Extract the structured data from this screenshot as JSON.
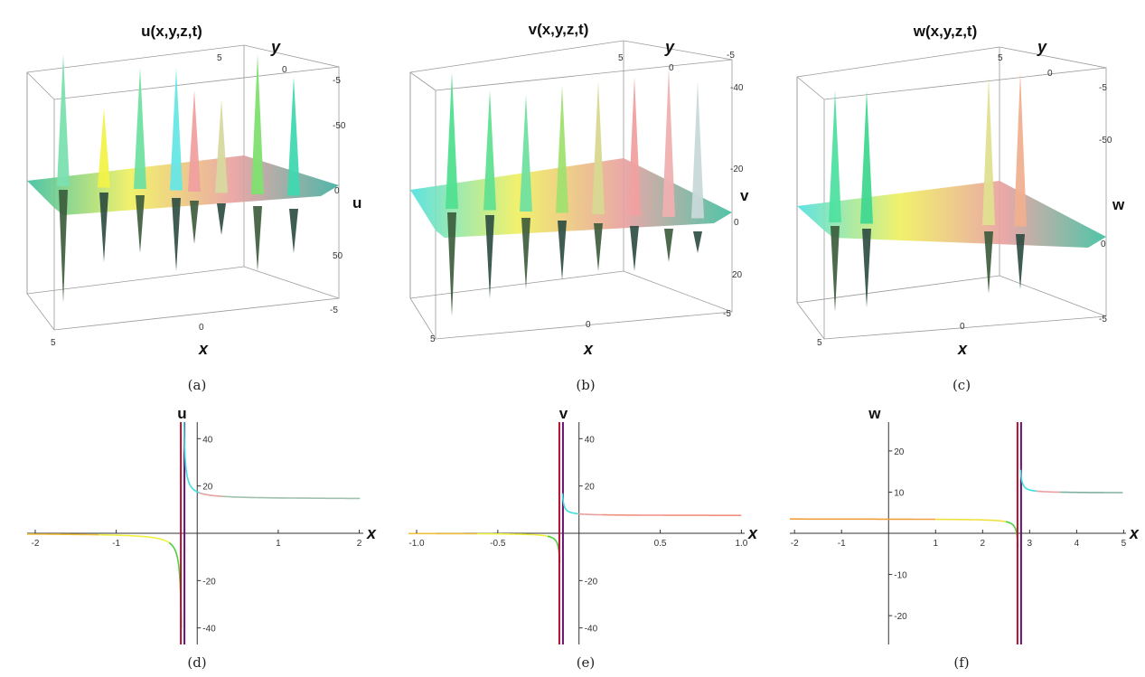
{
  "panels_3d": [
    {
      "id": "a",
      "title": "u(x,y,z,t)",
      "caption": "(a)",
      "x_label": "x",
      "y_label": "y",
      "z_label": "u",
      "x_ticks": [
        "5",
        "0",
        "-5"
      ],
      "y_ticks": [
        "5",
        "0",
        "-5"
      ],
      "z_ticks": [
        "-50",
        "0",
        "50"
      ],
      "spike_colors": [
        "#7be0b0",
        "#f2f24a",
        "#6fe0a0",
        "#66e6e6",
        "#f0a0a0",
        "#d8d8a0",
        "#80e070",
        "#40d8b0"
      ],
      "surface_colors": [
        "#3fc0a0",
        "#f0f060",
        "#e8a0a0",
        "#40b0a0"
      ]
    },
    {
      "id": "b",
      "title": "v(x,y,z,t)",
      "caption": "(b)",
      "x_label": "x",
      "y_label": "y",
      "z_label": "v",
      "x_ticks": [
        "5",
        "0",
        "-5"
      ],
      "y_ticks": [
        "5",
        "0",
        "-5"
      ],
      "z_ticks": [
        "-40",
        "-20",
        "0",
        "20"
      ],
      "spike_colors": [
        "#50e090",
        "#60e090",
        "#70e0a0",
        "#a0e070",
        "#d8d890",
        "#f0a0a0",
        "#f0b0b0",
        "#c8d8d8"
      ],
      "surface_colors": [
        "#50e0e0",
        "#f0f060",
        "#e8a0a0",
        "#40c0a0"
      ]
    },
    {
      "id": "c",
      "title": "w(x,y,z,t)",
      "caption": "(c)",
      "x_label": "x",
      "y_label": "y",
      "z_label": "w",
      "x_ticks": [
        "5",
        "0",
        "-5"
      ],
      "y_ticks": [
        "5",
        "0",
        "-5"
      ],
      "z_ticks": [
        "-50",
        "0"
      ],
      "spike_colors": [
        "#50e0a0",
        "#40d890",
        "#e0e090",
        "#f0b090"
      ],
      "surface_colors": [
        "#50e0e0",
        "#f0f060",
        "#e8a0a0",
        "#40c0a0"
      ]
    }
  ],
  "chart_data": [
    {
      "type": "line",
      "caption": "(d)",
      "xlabel": "x",
      "ylabel": "u",
      "xlim": [
        -2.1,
        2.05
      ],
      "ylim": [
        -47,
        47
      ],
      "x_ticks": [
        -2,
        -1,
        1,
        2
      ],
      "x_tick_labels": [
        "-2",
        "-1",
        "1",
        "2"
      ],
      "y_ticks": [
        -40,
        -20,
        20,
        40
      ],
      "y_tick_labels": [
        "-40",
        "-20",
        "20",
        "40"
      ],
      "pole": -0.18,
      "left_level": 0,
      "right_level": 14.5,
      "left_amp": -3.2,
      "right_amp": 2.6,
      "colors": [
        "#f0c040",
        "#f0f040",
        "#50d040",
        "#b01030",
        "#6a1070",
        "#40e0e0",
        "#e8a0a0",
        "#a0c0b0"
      ]
    },
    {
      "type": "line",
      "caption": "(e)",
      "xlabel": "x",
      "ylabel": "v",
      "xlim": [
        -1.05,
        1.02
      ],
      "ylim": [
        -47,
        47
      ],
      "x_ticks": [
        -1,
        -0.5,
        0.5,
        1
      ],
      "x_tick_labels": [
        "-1.0",
        "-0.5",
        "0.5",
        "1.0"
      ],
      "y_ticks": [
        -40,
        -20,
        20,
        40
      ],
      "y_tick_labels": [
        "-40",
        "-20",
        "20",
        "40"
      ],
      "pole": -0.11,
      "left_level": 0,
      "right_level": 7.5,
      "left_amp": -1.0,
      "right_amp": 0.75,
      "colors": [
        "#f0c040",
        "#f0f040",
        "#50d040",
        "#b01030",
        "#6a1070",
        "#40e0e0",
        "#e8a0a0",
        "#f09080"
      ]
    },
    {
      "type": "line",
      "caption": "(f)",
      "xlabel": "x",
      "ylabel": "w",
      "xlim": [
        -2.1,
        5.05
      ],
      "ylim": [
        -27,
        27
      ],
      "x_ticks": [
        -2,
        -1,
        1,
        2,
        3,
        4,
        5
      ],
      "x_tick_labels": [
        "-2",
        "-1",
        "1",
        "2",
        "3",
        "4",
        "5"
      ],
      "y_ticks": [
        -20,
        -10,
        10,
        20
      ],
      "y_tick_labels": [
        "-20",
        "-10",
        "10",
        "20"
      ],
      "pole": 2.78,
      "left_level": 3.5,
      "right_level": 9.8,
      "left_amp": -0.55,
      "right_amp": 0.45,
      "colors": [
        "#f0a040",
        "#f0e040",
        "#50d040",
        "#b01030",
        "#6a1070",
        "#40e0e0",
        "#e8a0a0",
        "#80b0a0"
      ]
    }
  ]
}
